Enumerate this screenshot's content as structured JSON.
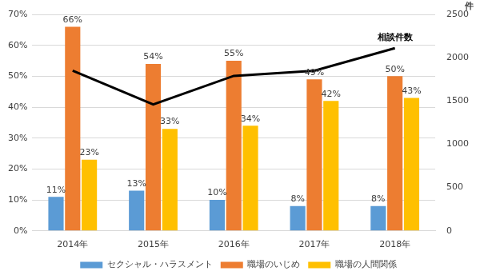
{
  "chart_data": {
    "type": "bar",
    "categories": [
      "2014年",
      "2015年",
      "2016年",
      "2017年",
      "2018年"
    ],
    "series": [
      {
        "name": "セクシャル・ハラスメント",
        "color": "#5b9bd5",
        "values": [
          11,
          13,
          10,
          8,
          8
        ],
        "value_labels": [
          "11%",
          "13%",
          "10%",
          "8%",
          "8%"
        ]
      },
      {
        "name": "職場のいじめ",
        "color": "#ed7d31",
        "values": [
          66,
          54,
          55,
          49,
          50
        ],
        "value_labels": [
          "66%",
          "54%",
          "55%",
          "49%",
          "50%"
        ]
      },
      {
        "name": "職場の人間関係",
        "color": "#ffc000",
        "values": [
          23,
          33,
          34,
          42,
          43
        ],
        "value_labels": [
          "23%",
          "33%",
          "34%",
          "42%",
          "43%"
        ]
      },
      {
        "name": "相談件数",
        "type": "line",
        "axis": "y2",
        "color": "#000000",
        "values": [
          1850,
          1460,
          1790,
          1850,
          2110
        ]
      }
    ],
    "ylim": [
      0,
      70
    ],
    "yticks": [
      {
        "value": 0,
        "label": "0%"
      },
      {
        "value": 10,
        "label": "10%"
      },
      {
        "value": 20,
        "label": "20%"
      },
      {
        "value": 30,
        "label": "30%"
      },
      {
        "value": 40,
        "label": "40%"
      },
      {
        "value": 50,
        "label": "50%"
      },
      {
        "value": 60,
        "label": "60%"
      },
      {
        "value": 70,
        "label": "70%"
      }
    ],
    "y2lim": [
      0,
      2500
    ],
    "y2ticks": [
      0,
      500,
      1000,
      1500,
      2000,
      2500
    ],
    "y2label": "件",
    "grid": true,
    "legend": "bottom",
    "data_labels": true
  }
}
